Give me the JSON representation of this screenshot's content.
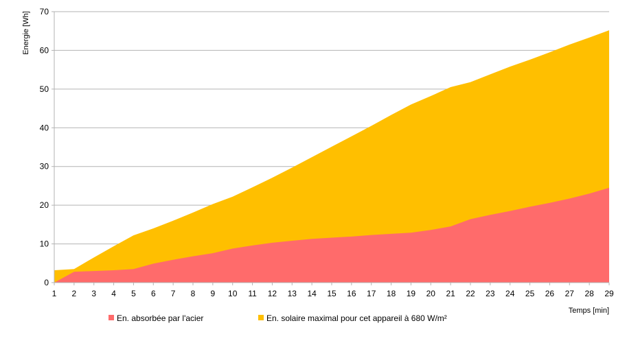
{
  "chart_data": {
    "type": "area",
    "title": "",
    "xlabel": "Temps [min]",
    "ylabel": "Energie [Wh]",
    "xlim": [
      1,
      29
    ],
    "ylim": [
      0,
      70
    ],
    "x_ticks": [
      1,
      2,
      3,
      4,
      5,
      6,
      7,
      8,
      9,
      10,
      11,
      12,
      13,
      14,
      15,
      16,
      17,
      18,
      19,
      20,
      21,
      22,
      23,
      24,
      25,
      26,
      27,
      28,
      29
    ],
    "y_ticks": [
      0,
      10,
      20,
      30,
      40,
      50,
      60,
      70
    ],
    "grid": "horizontal",
    "legend_position": "bottom",
    "x": [
      1,
      2,
      3,
      4,
      5,
      6,
      7,
      8,
      9,
      10,
      11,
      12,
      13,
      14,
      15,
      16,
      17,
      18,
      19,
      20,
      21,
      22,
      23,
      24,
      25,
      26,
      27,
      28,
      29
    ],
    "series": [
      {
        "name": "En. solaire maximal pour cet appareil à 680 W/m²",
        "color": "#ffbf00",
        "values": [
          3.2,
          3.5,
          6.5,
          9.4,
          12.2,
          14.0,
          16.0,
          18.1,
          20.3,
          22.2,
          24.6,
          27.1,
          29.7,
          32.4,
          35.1,
          37.8,
          40.5,
          43.3,
          46.0,
          48.2,
          50.5,
          51.8,
          53.8,
          55.8,
          57.6,
          59.5,
          61.5,
          63.3,
          65.2
        ]
      },
      {
        "name": "En. absorbée par l'acier",
        "color": "#ff6b6b",
        "values": [
          0.0,
          2.8,
          3.0,
          3.2,
          3.5,
          4.9,
          5.9,
          6.8,
          7.6,
          8.8,
          9.6,
          10.3,
          10.8,
          11.3,
          11.6,
          11.9,
          12.3,
          12.6,
          12.9,
          13.6,
          14.5,
          16.4,
          17.5,
          18.5,
          19.6,
          20.6,
          21.7,
          23.0,
          24.5
        ]
      }
    ],
    "legend": [
      {
        "label": "En. absorbée par l'acier",
        "color": "#ff6b6b"
      },
      {
        "label": "En. solaire maximal pour cet appareil à 680 W/m²",
        "color": "#ffbf00"
      }
    ]
  }
}
